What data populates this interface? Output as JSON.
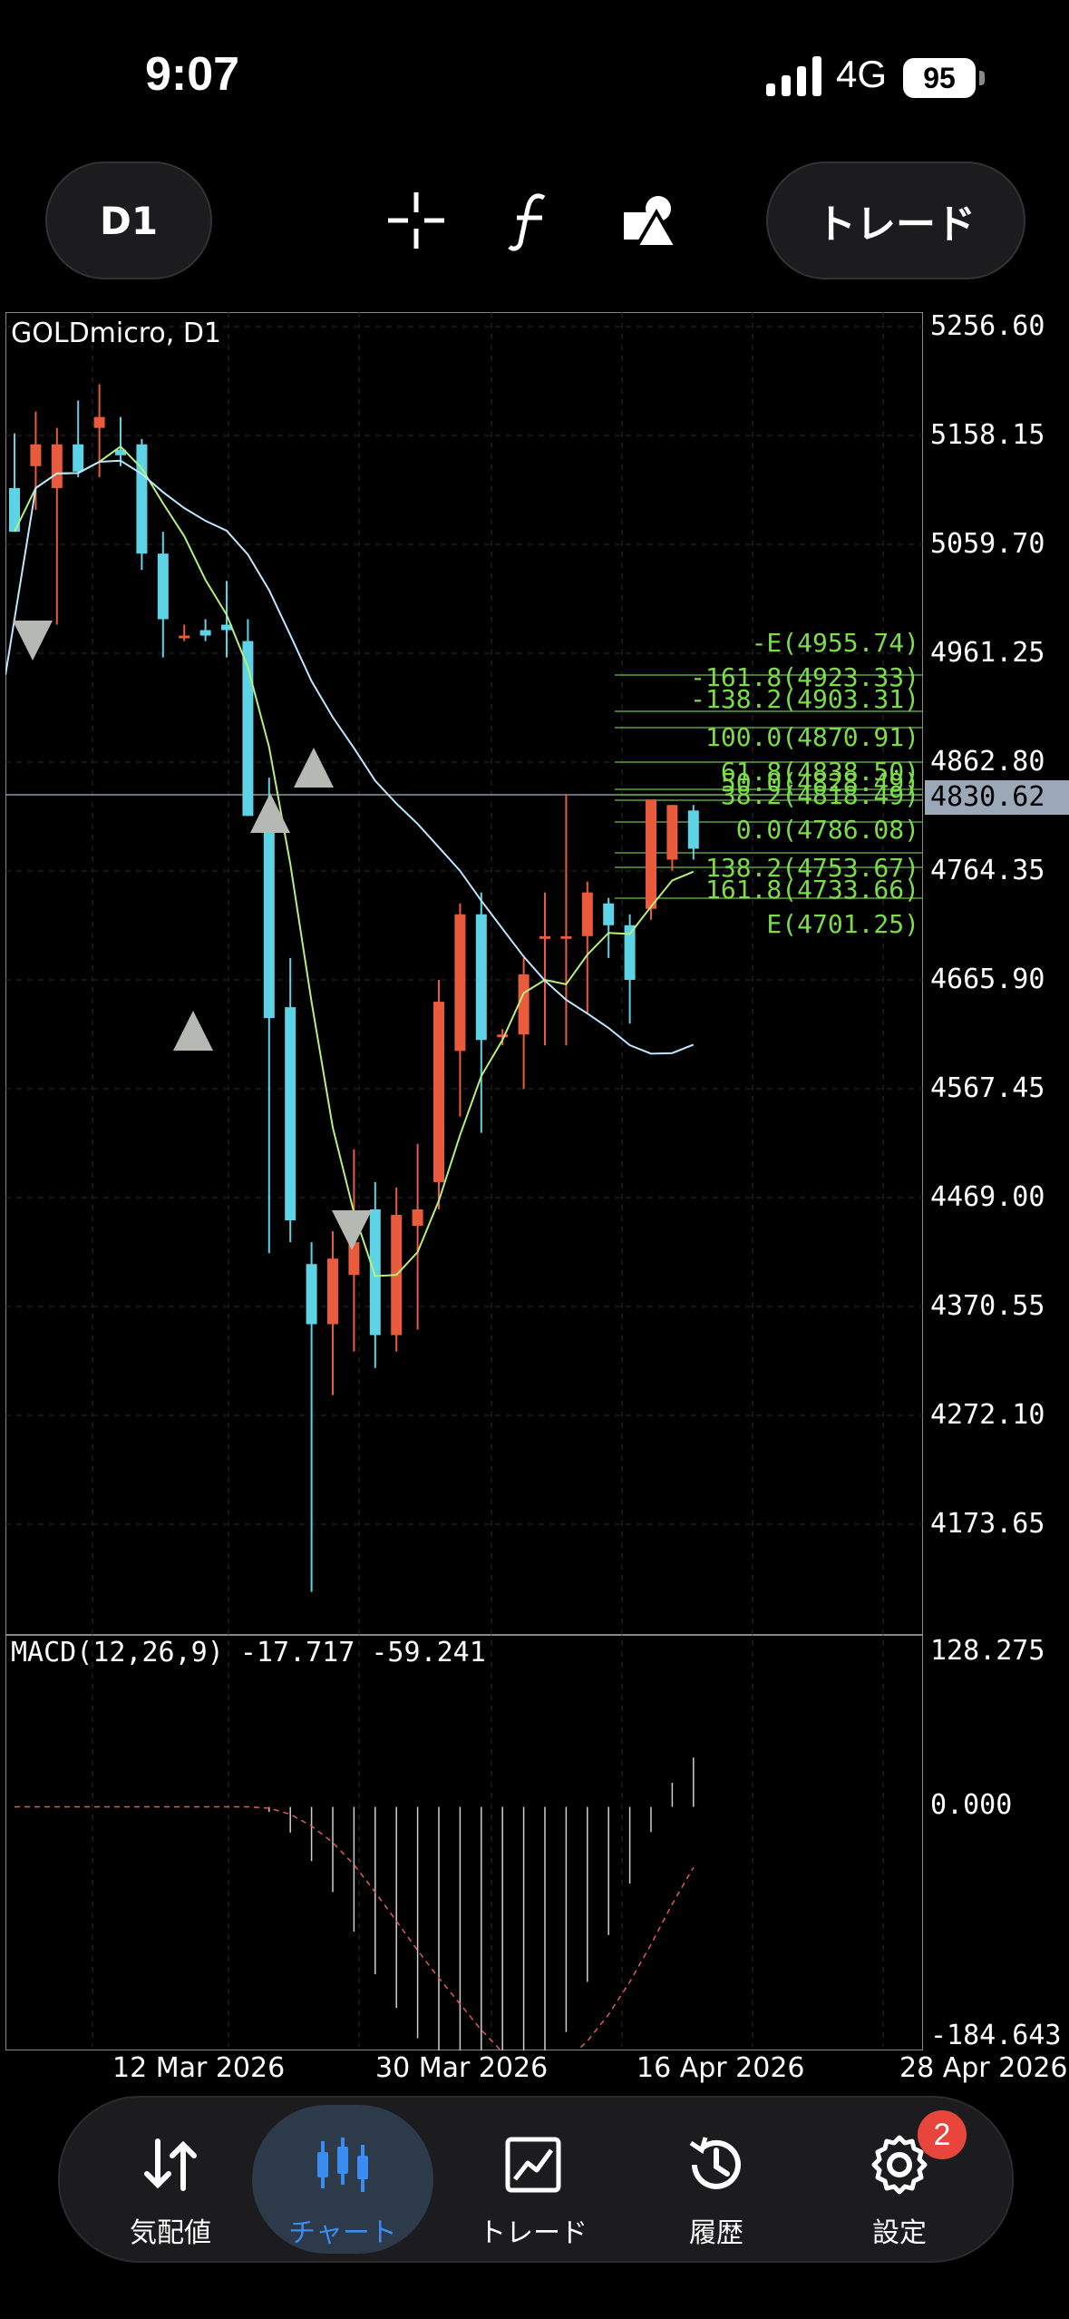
{
  "status_bar": {
    "time": "9:07",
    "network": "4G",
    "battery": "95"
  },
  "toolbar": {
    "timeframe_label": "D1",
    "trade_label": "トレード"
  },
  "chart": {
    "symbol_label": "GOLDmicro, D1",
    "current_price": "4830.62",
    "price_axis": [
      "5256.60",
      "5158.15",
      "5059.70",
      "4961.25",
      "4862.80",
      "4764.35",
      "4665.90",
      "4567.45",
      "4469.00",
      "4370.55",
      "4272.10",
      "4173.65"
    ],
    "fib_levels": [
      "-E(4955.74)",
      "-161.8(4923.33)",
      "-138.2(4903.31)",
      "100.0(4870.91)",
      "61.8(4838.50)",
      "50.0(4828.49)",
      "38.2(4818.49)",
      "0.0(4786.08)",
      "138.2(4753.67)",
      "161.8(4733.66)",
      "E(4701.25)"
    ],
    "macd_label": "MACD(12,26,9) -17.717 -59.241",
    "macd_axis": [
      "128.275",
      "0.000",
      "-184.643"
    ],
    "dates": [
      "12 Mar 2026",
      "30 Mar 2026",
      "16 Apr 2026",
      "28 Apr 2026"
    ]
  },
  "chart_data": {
    "type": "candlestick",
    "symbol": "GOLDmicro",
    "timeframe": "D1",
    "candles": [
      {
        "o": 5130,
        "h": 5180,
        "l": 5090,
        "c": 5090
      },
      {
        "o": 5150,
        "h": 5200,
        "l": 5110,
        "c": 5170
      },
      {
        "o": 5130,
        "h": 5185,
        "l": 5005,
        "c": 5170
      },
      {
        "o": 5170,
        "h": 5210,
        "l": 5140,
        "c": 5145
      },
      {
        "o": 5185,
        "h": 5225,
        "l": 5140,
        "c": 5195
      },
      {
        "o": 5165,
        "h": 5195,
        "l": 5150,
        "c": 5160
      },
      {
        "o": 5170,
        "h": 5175,
        "l": 5055,
        "c": 5070
      },
      {
        "o": 5070,
        "h": 5090,
        "l": 4975,
        "c": 5010
      },
      {
        "o": 4995,
        "h": 5005,
        "l": 4990,
        "c": 4995
      },
      {
        "o": 5000,
        "h": 5010,
        "l": 4990,
        "c": 4995
      },
      {
        "o": 5005,
        "h": 5045,
        "l": 4975,
        "c": 5000
      },
      {
        "o": 4990,
        "h": 5010,
        "l": 4830,
        "c": 4830
      },
      {
        "o": 4825,
        "h": 4865,
        "l": 4430,
        "c": 4645
      },
      {
        "o": 4655,
        "h": 4700,
        "l": 4440,
        "c": 4460
      },
      {
        "o": 4420,
        "h": 4440,
        "l": 4120,
        "c": 4365
      },
      {
        "o": 4365,
        "h": 4450,
        "l": 4300,
        "c": 4425
      },
      {
        "o": 4410,
        "h": 4525,
        "l": 4340,
        "c": 4440
      },
      {
        "o": 4470,
        "h": 4495,
        "l": 4325,
        "c": 4355
      },
      {
        "o": 4355,
        "h": 4490,
        "l": 4340,
        "c": 4465
      },
      {
        "o": 4455,
        "h": 4530,
        "l": 4360,
        "c": 4470
      },
      {
        "o": 4495,
        "h": 4680,
        "l": 4470,
        "c": 4660
      },
      {
        "o": 4615,
        "h": 4750,
        "l": 4555,
        "c": 4740
      },
      {
        "o": 4740,
        "h": 4760,
        "l": 4540,
        "c": 4625
      },
      {
        "o": 4630,
        "h": 4635,
        "l": 4620,
        "c": 4630
      },
      {
        "o": 4630,
        "h": 4700,
        "l": 4580,
        "c": 4685
      },
      {
        "o": 4720,
        "h": 4760,
        "l": 4620,
        "c": 4720
      },
      {
        "o": 4720,
        "h": 4850,
        "l": 4620,
        "c": 4720
      },
      {
        "o": 4720,
        "h": 4770,
        "l": 4650,
        "c": 4760
      },
      {
        "o": 4750,
        "h": 4755,
        "l": 4700,
        "c": 4730
      },
      {
        "o": 4730,
        "h": 4740,
        "l": 4640,
        "c": 4680
      },
      {
        "o": 4745,
        "h": 4845,
        "l": 4735,
        "c": 4845
      },
      {
        "o": 4790,
        "h": 4840,
        "l": 4780,
        "c": 4840
      },
      {
        "o": 4835,
        "h": 4840,
        "l": 4790,
        "c": 4800
      }
    ],
    "fast_ma_color": "#b6f07a",
    "slow_ma_color": "#bfe6ff",
    "up_color": "#ea5a3c",
    "down_color": "#5ed3e6",
    "yaxis_range": [
      4089,
      5281
    ],
    "macd_range": [
      -184.643,
      128.275
    ]
  },
  "nav": {
    "items": [
      {
        "label": "気配値",
        "icon": "quotes-icon"
      },
      {
        "label": "チャート",
        "icon": "chart-icon"
      },
      {
        "label": "トレード",
        "icon": "trade-icon"
      },
      {
        "label": "履歴",
        "icon": "history-icon"
      },
      {
        "label": "設定",
        "icon": "settings-icon"
      }
    ],
    "settings_badge": "2",
    "active_color": "#3a8cf0"
  }
}
